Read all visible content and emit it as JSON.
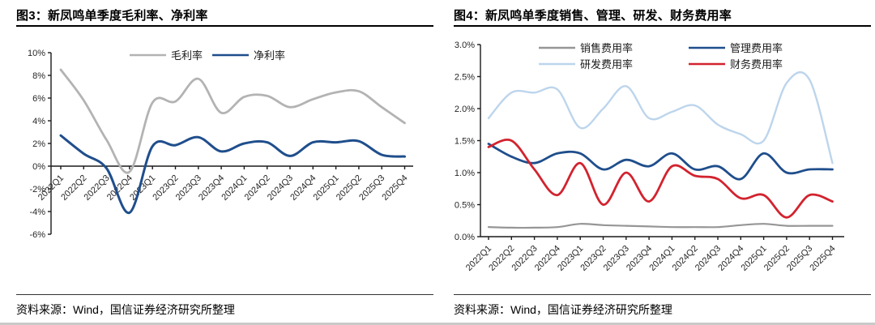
{
  "figures": [
    {
      "title": "图3：新凤鸣单季度毛利率、净利率",
      "source": "资料来源：Wind，国信证券经济研究所整理"
    },
    {
      "title": "图4：新凤鸣单季度销售、管理、研发、财务费用率",
      "source": "资料来源：Wind，国信证券经济研究所整理"
    }
  ],
  "chart_data": [
    {
      "type": "line",
      "title": "图3：新凤鸣单季度毛利率、净利率",
      "categories": [
        "2022Q1",
        "2022Q2",
        "2022Q3",
        "2022Q4",
        "2023Q1",
        "2023Q2",
        "2023Q3",
        "2023Q4",
        "2024Q1",
        "2024Q2",
        "2024Q3",
        "2024Q4",
        "2025Q1",
        "2025Q2",
        "2025Q3",
        "2025Q4"
      ],
      "series": [
        {
          "name": "毛利率",
          "color": "#b3b3b3",
          "values": [
            8.5,
            5.8,
            2.3,
            -0.5,
            5.6,
            5.7,
            7.7,
            4.7,
            6.1,
            6.2,
            5.2,
            5.9,
            6.5,
            6.6,
            5.2,
            3.8
          ]
        },
        {
          "name": "净利率",
          "color": "#1f4e8c",
          "values": [
            2.7,
            1.1,
            -0.2,
            -4.1,
            1.75,
            1.85,
            2.55,
            1.3,
            2.0,
            2.1,
            0.9,
            2.1,
            2.1,
            2.2,
            1.0,
            0.85
          ]
        }
      ],
      "ylim": [
        -6,
        10
      ],
      "yticks": [
        "10%",
        "8%",
        "6%",
        "4%",
        "2%",
        "0%",
        "-2%",
        "-4%",
        "-6%"
      ],
      "xlabel": "",
      "ylabel": "",
      "grid": false,
      "legend_position": "top"
    },
    {
      "type": "line",
      "title": "图4：新凤鸣单季度销售、管理、研发、财务费用率",
      "categories": [
        "2022Q1",
        "2022Q2",
        "2022Q3",
        "2022Q4",
        "2023Q1",
        "2023Q2",
        "2023Q3",
        "2023Q4",
        "2024Q1",
        "2024Q2",
        "2024Q3",
        "2024Q4",
        "2025Q1",
        "2025Q2",
        "2025Q3",
        "2025Q4"
      ],
      "series": [
        {
          "name": "销售费用率",
          "color": "#969696",
          "values": [
            0.15,
            0.14,
            0.14,
            0.15,
            0.2,
            0.18,
            0.17,
            0.16,
            0.15,
            0.15,
            0.15,
            0.18,
            0.2,
            0.17,
            0.17,
            0.17
          ]
        },
        {
          "name": "管理费用率",
          "color": "#1f4e8c",
          "values": [
            1.45,
            1.25,
            1.15,
            1.3,
            1.3,
            1.05,
            1.2,
            1.1,
            1.3,
            1.05,
            1.1,
            0.9,
            1.3,
            1.0,
            1.05,
            1.05
          ]
        },
        {
          "name": "研发费用率",
          "color": "#bdd5ec",
          "values": [
            1.85,
            2.25,
            2.25,
            2.3,
            1.7,
            2.0,
            2.35,
            1.85,
            1.95,
            2.05,
            1.75,
            1.6,
            1.5,
            2.4,
            2.45,
            1.15
          ]
        },
        {
          "name": "财务费用率",
          "color": "#d2232e",
          "values": [
            1.4,
            1.5,
            1.05,
            0.65,
            1.15,
            0.5,
            1.0,
            0.55,
            1.1,
            0.95,
            0.9,
            0.6,
            0.65,
            0.3,
            0.65,
            0.55
          ]
        }
      ],
      "ylim": [
        0,
        3
      ],
      "yticks": [
        "3.0%",
        "2.5%",
        "2.0%",
        "1.5%",
        "1.0%",
        "0.5%",
        "0.0%"
      ],
      "xlabel": "",
      "ylabel": "",
      "grid": false,
      "legend_position": "top"
    }
  ]
}
